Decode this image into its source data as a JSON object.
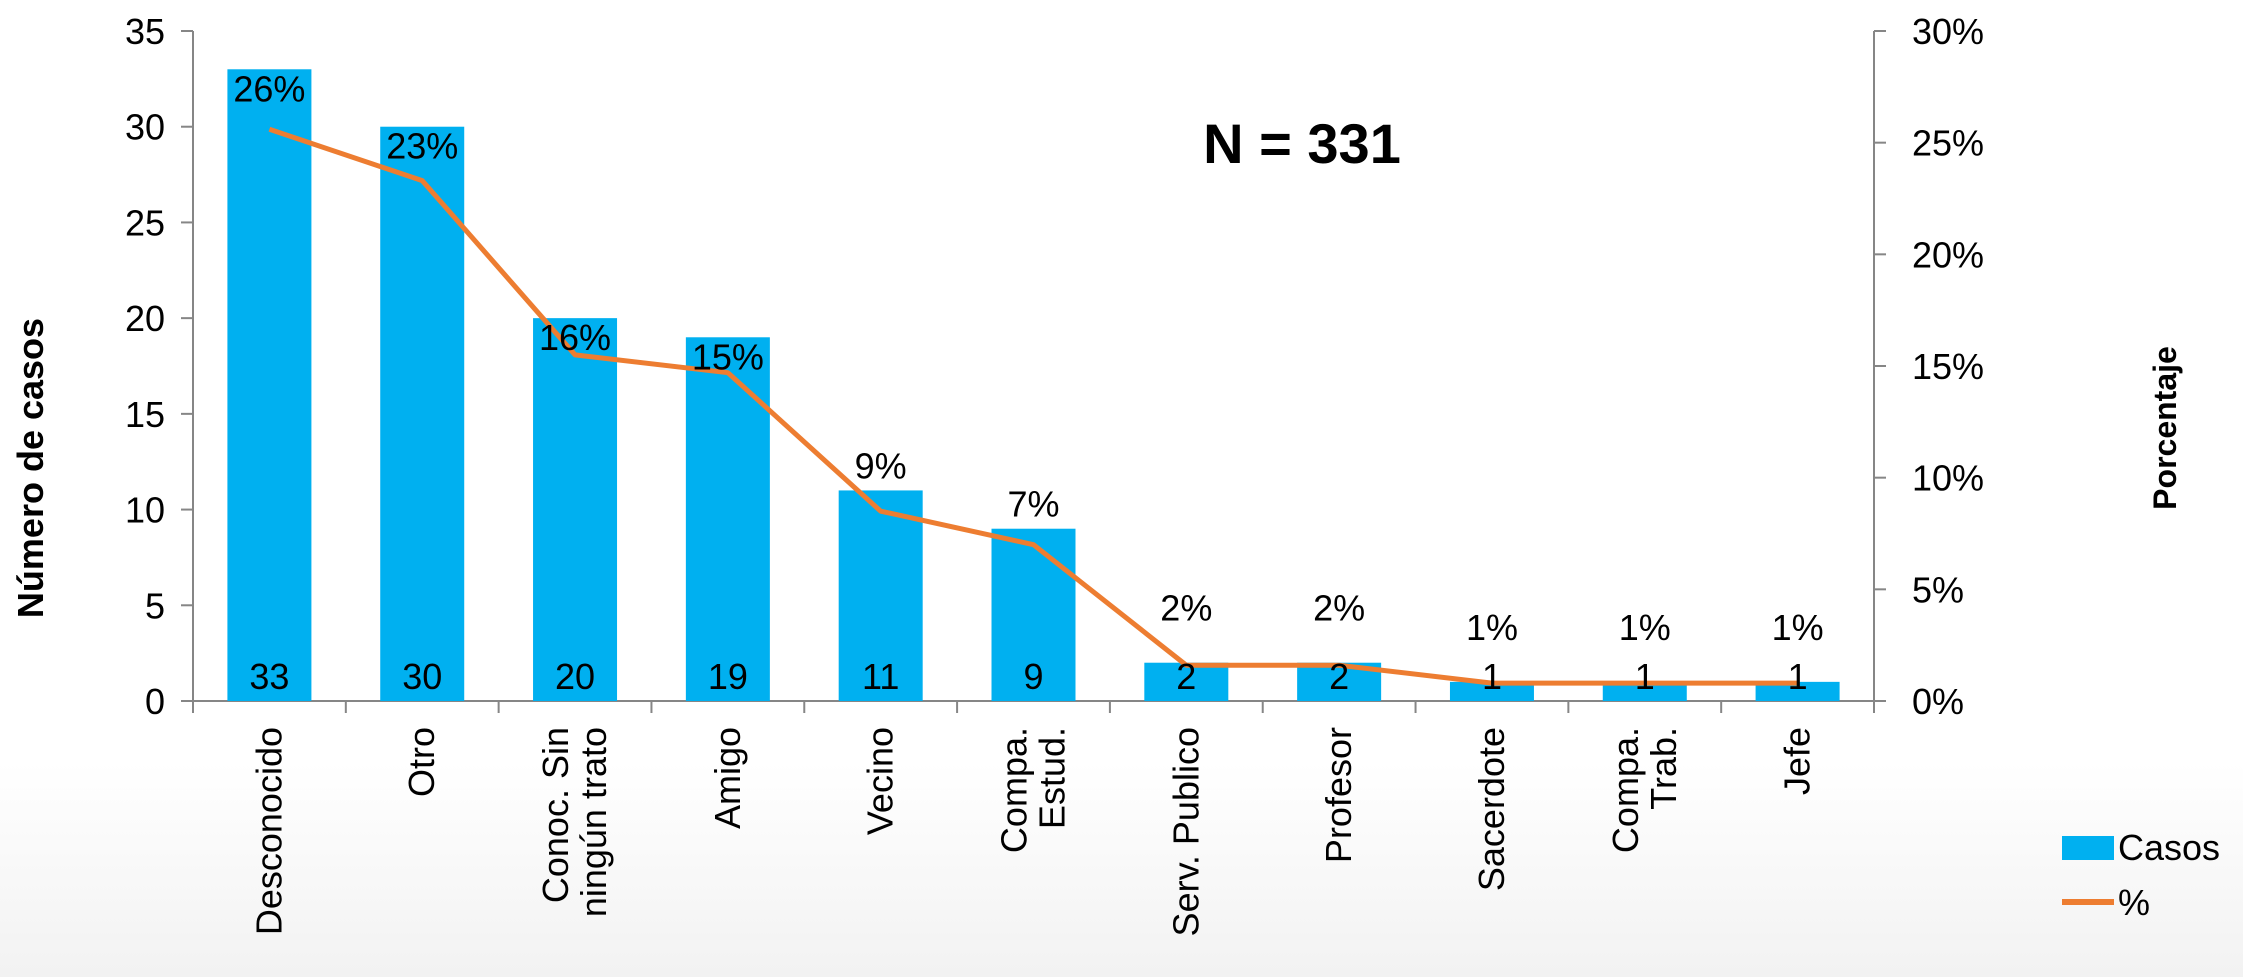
{
  "chart_data": {
    "type": "bar",
    "annotation": "N = 331",
    "categories": [
      [
        "Desconocido"
      ],
      [
        "Otro"
      ],
      [
        "Conoc. Sin",
        "ningún trato"
      ],
      [
        "Amigo"
      ],
      [
        "Vecino"
      ],
      [
        "Compa.",
        "Estud."
      ],
      [
        "Serv. Publico"
      ],
      [
        "Profesor"
      ],
      [
        "Sacerdote"
      ],
      [
        "Compa.",
        "Trab."
      ],
      [
        "Jefe"
      ]
    ],
    "series": [
      {
        "name": "Casos",
        "type": "bar",
        "axis": "left",
        "values": [
          33,
          30,
          20,
          19,
          11,
          9,
          2,
          2,
          1,
          1,
          1
        ],
        "labels": [
          "33",
          "30",
          "20",
          "19",
          "11",
          "9",
          "2",
          "2",
          "1",
          "1",
          "1"
        ]
      },
      {
        "name": "%",
        "type": "line",
        "axis": "right",
        "values": [
          25.6,
          23.3,
          15.5,
          14.7,
          8.5,
          7.0,
          1.6,
          1.6,
          0.8,
          0.8,
          0.8
        ],
        "labels": [
          "26%",
          "23%",
          "16%",
          "15%",
          "9%",
          "7%",
          "2%",
          "2%",
          "1%",
          "1%",
          "1%"
        ]
      }
    ],
    "ylabel": "Número de casos",
    "ylabel_right": "Porcentaje",
    "ylim": [
      0,
      35
    ],
    "yticks": [
      "0",
      "5",
      "10",
      "15",
      "20",
      "25",
      "30",
      "35"
    ],
    "ylim_right": [
      0,
      30
    ],
    "yticks_right": [
      "0%",
      "5%",
      "10%",
      "15%",
      "20%",
      "25%",
      "30%"
    ],
    "legend": [
      "Casos",
      "%"
    ],
    "legend_position": "bottom-right",
    "grid": false,
    "colors": {
      "bar": "#00B0F0",
      "line": "#ED7D31",
      "axis": "#868686"
    }
  }
}
